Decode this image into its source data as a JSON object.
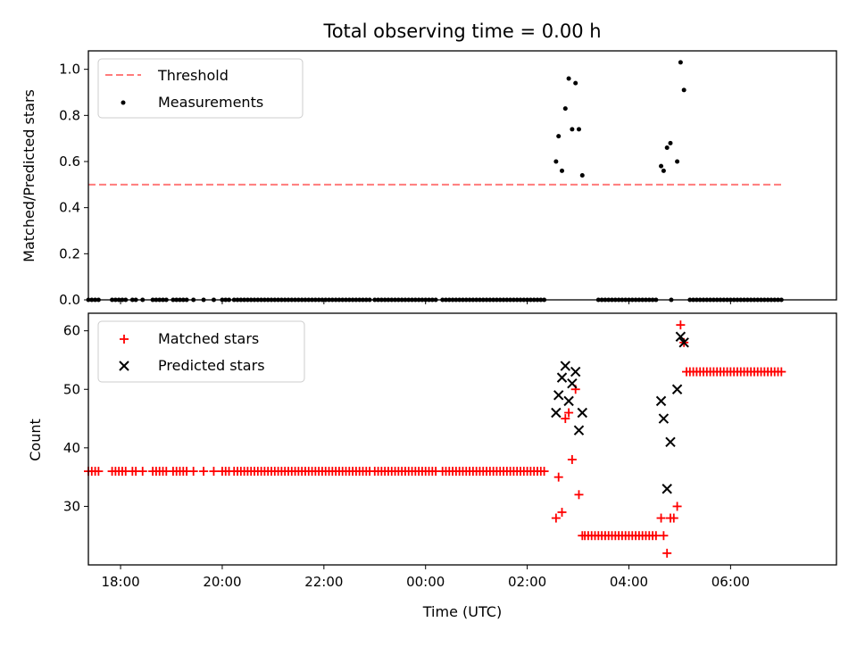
{
  "chart_data": [
    {
      "type": "scatter",
      "title": "Total observing time = 0.00 h",
      "xlabel": "",
      "ylabel": "Matched/Predicted stars",
      "ylim": [
        0,
        1.08
      ],
      "yticks": [
        "0.0",
        "0.2",
        "0.4",
        "0.6",
        "0.8",
        "1.0"
      ],
      "xlim": [
        "17:22",
        "08:05"
      ],
      "legend": "top-left",
      "threshold": {
        "name": "Threshold",
        "value": 0.5,
        "x": [
          "17:22",
          "07:00"
        ],
        "color": "#ff7b7b"
      },
      "measurements_name": "Measurements",
      "measurement_color": "#000000",
      "zero_times": [
        "17:22",
        "17:26",
        "17:30",
        "17:34",
        "17:50",
        "17:54",
        "17:58",
        "18:02",
        "18:06",
        "18:14",
        "18:18",
        "18:26",
        "18:38",
        "18:42",
        "18:46",
        "18:50",
        "18:54",
        "19:02",
        "19:06",
        "19:10",
        "19:14",
        "19:18",
        "19:26",
        "19:38",
        "19:50",
        "20:00",
        "20:04",
        "20:08",
        "20:14",
        "20:18",
        "20:22",
        "20:26",
        "20:30",
        "20:34",
        "20:38",
        "20:42",
        "20:46",
        "20:50",
        "20:54",
        "20:58",
        "21:02",
        "21:06",
        "21:10",
        "21:14",
        "21:18",
        "21:22",
        "21:26",
        "21:30",
        "21:34",
        "21:38",
        "21:42",
        "21:46",
        "21:50",
        "21:54",
        "21:58",
        "22:02",
        "22:06",
        "22:10",
        "22:14",
        "22:18",
        "22:22",
        "22:26",
        "22:30",
        "22:34",
        "22:38",
        "22:42",
        "22:46",
        "22:50",
        "22:54",
        "23:00",
        "23:04",
        "23:08",
        "23:12",
        "23:16",
        "23:20",
        "23:24",
        "23:28",
        "23:32",
        "23:36",
        "23:40",
        "23:44",
        "23:48",
        "23:52",
        "23:56",
        "00:00",
        "00:04",
        "00:08",
        "00:12",
        "00:20",
        "00:24",
        "00:28",
        "00:32",
        "00:36",
        "00:40",
        "00:44",
        "00:48",
        "00:52",
        "00:56",
        "01:00",
        "01:04",
        "01:08",
        "01:12",
        "01:16",
        "01:20",
        "01:24",
        "01:28",
        "01:32",
        "01:36",
        "01:40",
        "01:44",
        "01:48",
        "01:52",
        "01:56",
        "02:00",
        "02:04",
        "02:08",
        "02:12",
        "02:16",
        "02:20",
        "03:24",
        "03:28",
        "03:32",
        "03:36",
        "03:40",
        "03:44",
        "03:48",
        "03:52",
        "03:56",
        "04:00",
        "04:04",
        "04:08",
        "04:12",
        "04:16",
        "04:20",
        "04:24",
        "04:28",
        "04:32",
        "04:50",
        "05:12",
        "05:16",
        "05:20",
        "05:24",
        "05:28",
        "05:32",
        "05:36",
        "05:40",
        "05:44",
        "05:48",
        "05:52",
        "05:56",
        "06:00",
        "06:04",
        "06:08",
        "06:12",
        "06:16",
        "06:20",
        "06:24",
        "06:28",
        "06:32",
        "06:36",
        "06:40",
        "06:44",
        "06:48",
        "06:52",
        "06:56",
        "07:00"
      ],
      "points": [
        {
          "x": "02:34",
          "y": 0.6
        },
        {
          "x": "02:37",
          "y": 0.71
        },
        {
          "x": "02:41",
          "y": 0.56
        },
        {
          "x": "02:45",
          "y": 0.83
        },
        {
          "x": "02:49",
          "y": 0.96
        },
        {
          "x": "02:53",
          "y": 0.74
        },
        {
          "x": "02:57",
          "y": 0.94
        },
        {
          "x": "03:01",
          "y": 0.74
        },
        {
          "x": "03:05",
          "y": 0.54
        },
        {
          "x": "04:38",
          "y": 0.58
        },
        {
          "x": "04:41",
          "y": 0.56
        },
        {
          "x": "04:45",
          "y": 0.66
        },
        {
          "x": "04:49",
          "y": 0.68
        },
        {
          "x": "04:57",
          "y": 0.6
        },
        {
          "x": "05:01",
          "y": 1.03
        },
        {
          "x": "05:05",
          "y": 0.91
        }
      ]
    },
    {
      "type": "scatter",
      "title": "",
      "xlabel": "Time (UTC)",
      "ylabel": "Count",
      "ylim": [
        20,
        63
      ],
      "yticks": [
        "30",
        "40",
        "50",
        "60"
      ],
      "xlim": [
        "17:22",
        "08:05"
      ],
      "xticks": [
        "18:00",
        "20:00",
        "22:00",
        "00:00",
        "02:00",
        "04:00",
        "06:00"
      ],
      "legend": "top-left",
      "series": [
        {
          "name": "Matched stars",
          "marker": "+",
          "color": "#ff0000",
          "values": [
            {
              "x": "02:34",
              "y": 28
            },
            {
              "x": "02:37",
              "y": 35
            },
            {
              "x": "02:41",
              "y": 29
            },
            {
              "x": "02:45",
              "y": 45
            },
            {
              "x": "02:49",
              "y": 46
            },
            {
              "x": "02:53",
              "y": 38
            },
            {
              "x": "02:57",
              "y": 50
            },
            {
              "x": "03:01",
              "y": 32
            },
            {
              "x": "04:38",
              "y": 28
            },
            {
              "x": "04:41",
              "y": 25
            },
            {
              "x": "04:45",
              "y": 22
            },
            {
              "x": "04:49",
              "y": 28
            },
            {
              "x": "04:53",
              "y": 28
            },
            {
              "x": "04:57",
              "y": 30
            },
            {
              "x": "05:01",
              "y": 61
            },
            {
              "x": "05:05",
              "y": 58
            }
          ]
        },
        {
          "name": "Predicted stars",
          "marker": "x",
          "color": "#000000",
          "values": [
            {
              "x": "02:34",
              "y": 46
            },
            {
              "x": "02:37",
              "y": 49
            },
            {
              "x": "02:41",
              "y": 52
            },
            {
              "x": "02:45",
              "y": 54
            },
            {
              "x": "02:49",
              "y": 48
            },
            {
              "x": "02:53",
              "y": 51
            },
            {
              "x": "02:57",
              "y": 53
            },
            {
              "x": "03:01",
              "y": 43
            },
            {
              "x": "03:05",
              "y": 46
            },
            {
              "x": "04:38",
              "y": 48
            },
            {
              "x": "04:41",
              "y": 45
            },
            {
              "x": "04:45",
              "y": 33
            },
            {
              "x": "04:49",
              "y": 41
            },
            {
              "x": "04:57",
              "y": 50
            },
            {
              "x": "05:01",
              "y": 59
            },
            {
              "x": "05:05",
              "y": 58
            }
          ]
        }
      ],
      "constant_runs": [
        {
          "y": 36,
          "marker": "+",
          "color": "#ff0000",
          "times": [
            "17:22",
            "17:26",
            "17:30",
            "17:34",
            "17:50",
            "17:54",
            "17:58",
            "18:02",
            "18:06",
            "18:14",
            "18:18",
            "18:26",
            "18:38",
            "18:42",
            "18:46",
            "18:50",
            "18:54",
            "19:02",
            "19:06",
            "19:10",
            "19:14",
            "19:18",
            "19:26",
            "19:38",
            "19:50",
            "20:00",
            "20:04",
            "20:08",
            "20:14",
            "20:18",
            "20:22",
            "20:26",
            "20:30",
            "20:34",
            "20:38",
            "20:42",
            "20:46",
            "20:50",
            "20:54",
            "20:58",
            "21:02",
            "21:06",
            "21:10",
            "21:14",
            "21:18",
            "21:22",
            "21:26",
            "21:30",
            "21:34",
            "21:38",
            "21:42",
            "21:46",
            "21:50",
            "21:54",
            "21:58",
            "22:02",
            "22:06",
            "22:10",
            "22:14",
            "22:18",
            "22:22",
            "22:26",
            "22:30",
            "22:34",
            "22:38",
            "22:42",
            "22:46",
            "22:50",
            "22:54",
            "23:00",
            "23:04",
            "23:08",
            "23:12",
            "23:16",
            "23:20",
            "23:24",
            "23:28",
            "23:32",
            "23:36",
            "23:40",
            "23:44",
            "23:48",
            "23:52",
            "23:56",
            "00:00",
            "00:04",
            "00:08",
            "00:12",
            "00:20",
            "00:24",
            "00:28",
            "00:32",
            "00:36",
            "00:40",
            "00:44",
            "00:48",
            "00:52",
            "00:56",
            "01:00",
            "01:04",
            "01:08",
            "01:12",
            "01:16",
            "01:20",
            "01:24",
            "01:28",
            "01:32",
            "01:36",
            "01:40",
            "01:44",
            "01:48",
            "01:52",
            "01:56",
            "02:00",
            "02:04",
            "02:08",
            "02:12",
            "02:16",
            "02:20"
          ]
        },
        {
          "y": 25,
          "marker": "+",
          "color": "#ff0000",
          "times": [
            "03:05",
            "03:08",
            "03:12",
            "03:16",
            "03:20",
            "03:24",
            "03:28",
            "03:32",
            "03:36",
            "03:40",
            "03:44",
            "03:48",
            "03:52",
            "03:56",
            "04:00",
            "04:04",
            "04:08",
            "04:12",
            "04:16",
            "04:20",
            "04:24",
            "04:28",
            "04:32"
          ]
        },
        {
          "y": 53,
          "marker": "+",
          "color": "#ff0000",
          "times": [
            "05:08",
            "05:12",
            "05:16",
            "05:20",
            "05:24",
            "05:28",
            "05:32",
            "05:36",
            "05:40",
            "05:44",
            "05:48",
            "05:52",
            "05:56",
            "06:00",
            "06:04",
            "06:08",
            "06:12",
            "06:16",
            "06:20",
            "06:24",
            "06:28",
            "06:32",
            "06:36",
            "06:40",
            "06:44",
            "06:48",
            "06:52",
            "06:56",
            "07:00"
          ]
        }
      ]
    }
  ]
}
